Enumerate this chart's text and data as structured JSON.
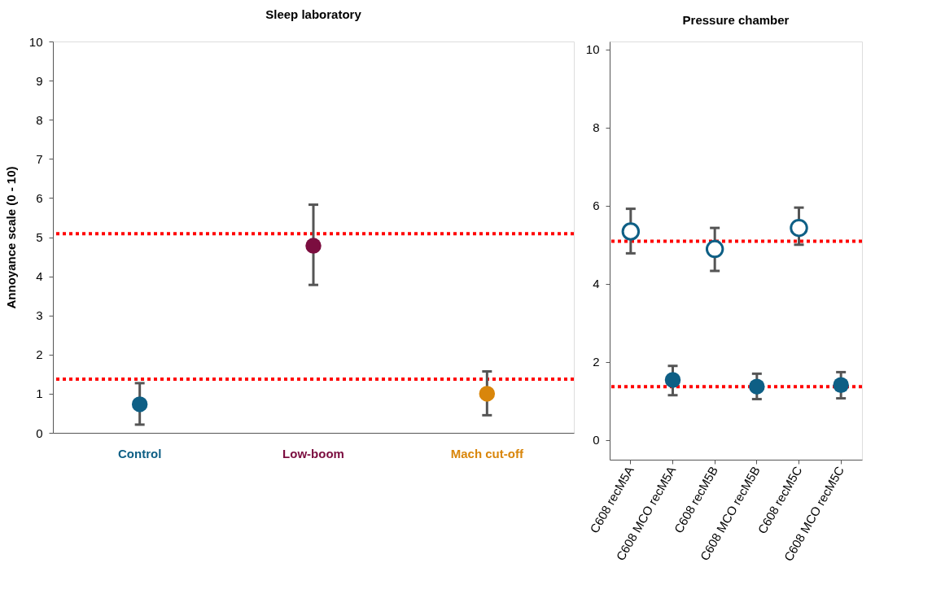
{
  "chart_data": [
    {
      "type": "scatter",
      "title": "Sleep laboratory",
      "ylabel": "Annoyance scale (0 - 10)",
      "categories": [
        "Control",
        "Low-boom",
        "Mach cut-off"
      ],
      "values": [
        0.73,
        4.78,
        1.0
      ],
      "colors": [
        "#0e5f85",
        "#7b0d3f",
        "#d9860b"
      ],
      "errors": [
        [
          0.21,
          1.27
        ],
        [
          3.78,
          5.83
        ],
        [
          0.45,
          1.57
        ]
      ],
      "ylim": [
        0,
        10
      ],
      "yticks": [
        0,
        1,
        2,
        3,
        4,
        5,
        6,
        7,
        8,
        9,
        10
      ],
      "marker": "circle",
      "grid": false,
      "ref_lines": [
        {
          "axis": "y",
          "value": 5.09,
          "color": "#ff0000",
          "line_style": "dotted"
        },
        {
          "axis": "y",
          "value": 1.37,
          "color": "#ff0000",
          "line_style": "dotted"
        }
      ]
    },
    {
      "type": "scatter",
      "title": "Pressure chamber",
      "categories": [
        "C608 recM5A",
        "C608 MCO recM5A",
        "C608 recM5B",
        "C608 MCO recM5B",
        "C608 recM5C",
        "C608 MCO recM5C"
      ],
      "series": [
        {
          "color": "#0e5f85",
          "values": [
            5.34,
            null,
            4.89,
            null,
            5.43,
            null
          ],
          "errors": [
            [
              4.78,
              5.92
            ],
            null,
            [
              4.33,
              5.43
            ],
            null,
            [
              5.0,
              5.95
            ],
            null
          ]
        },
        {
          "color": "#0e5f85",
          "values": [
            null,
            1.54,
            null,
            1.37,
            null,
            1.41
          ],
          "errors": [
            null,
            [
              1.15,
              1.9
            ],
            null,
            [
              1.05,
              1.7
            ],
            null,
            [
              1.07,
              1.74
            ]
          ]
        }
      ],
      "ylim": [
        -0.5,
        10.2
      ],
      "yticks": [
        0,
        2,
        4,
        6,
        8,
        10
      ],
      "marker": "circle",
      "grid": false,
      "ref_lines": [
        {
          "axis": "y",
          "value": 5.09,
          "color": "#ff0000",
          "line_style": "dotted"
        },
        {
          "axis": "y",
          "value": 1.37,
          "color": "#ff0000",
          "line_style": "dotted"
        }
      ]
    }
  ]
}
